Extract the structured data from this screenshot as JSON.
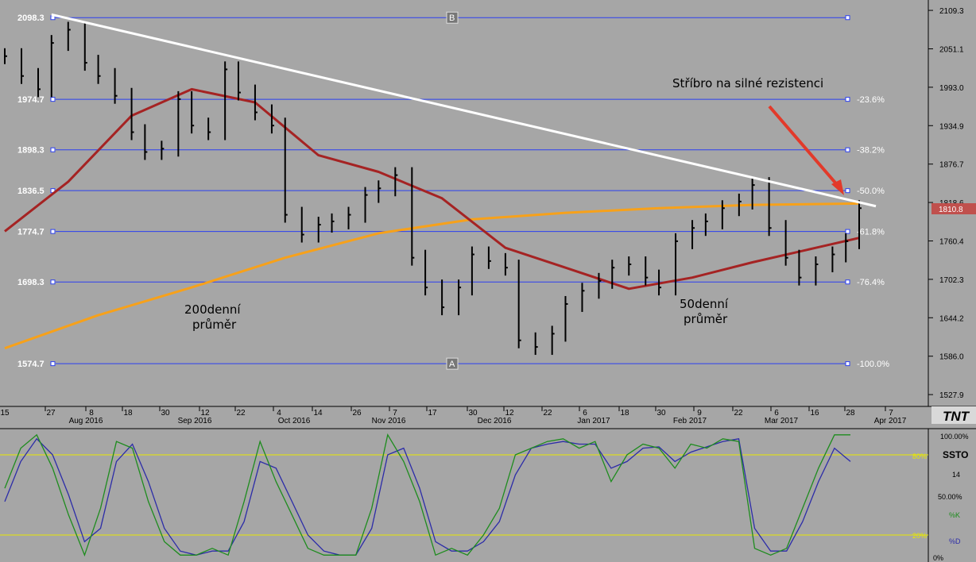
{
  "indicator": {
    "name": "SSTO",
    "period": "14",
    "k_label": "%K",
    "d_label": "%D",
    "top_label": "100.00%",
    "mid_label": "50.00%",
    "bottom_label": "0%",
    "overbought": "80%",
    "oversold": "20%"
  },
  "price_axis": {
    "ticks": [
      "2109.3",
      "2051.1",
      "1993.0",
      "1934.9",
      "1876.7",
      "1818.6",
      "1760.4",
      "1702.3",
      "1644.2",
      "1586.0",
      "1527.9"
    ],
    "ylim": [
      1510,
      2125
    ]
  },
  "fib": {
    "levels": [
      {
        "price": 2098.3,
        "left_label": "2098.3",
        "right_label": ""
      },
      {
        "price": 1974.7,
        "left_label": "1974.7",
        "right_label": "-23.6%"
      },
      {
        "price": 1898.3,
        "left_label": "1898.3",
        "right_label": "-38.2%"
      },
      {
        "price": 1836.5,
        "left_label": "1836.5",
        "right_label": "-50.0%"
      },
      {
        "price": 1774.7,
        "left_label": "1774.7",
        "right_label": "-61.8%"
      },
      {
        "price": 1698.3,
        "left_label": "1698.3",
        "right_label": "-76.4%"
      },
      {
        "price": 1574.7,
        "left_label": "1574.7",
        "right_label": "-100.0%"
      }
    ],
    "point_a": "A",
    "point_b": "B"
  },
  "current_price": "1810.8",
  "annotations": {
    "resistance": "Stříbro na silné rezistenci",
    "ma200_line1": "200denní",
    "ma200_line2": "průměr",
    "ma50_line1": "50denní",
    "ma50_line2": "průměr"
  },
  "logo": "TNT",
  "x_axis": {
    "days": [
      "15",
      "27",
      "8",
      "18",
      "30",
      "12",
      "22",
      "4",
      "14",
      "26",
      "7",
      "17",
      "30",
      "12",
      "22",
      "6",
      "18",
      "30",
      "9",
      "22",
      "6",
      "16",
      "28",
      "7"
    ],
    "months": [
      "Aug 2016",
      "Sep 2016",
      "Oct 2016",
      "Nov 2016",
      "Dec 2016",
      "Jan 2017",
      "Feb 2017",
      "Mar 2017",
      "Apr 2017"
    ]
  },
  "colors": {
    "background": "#a6a6a6",
    "fib_line": "#2b3ff0",
    "ma50": "#a52323",
    "ma200": "#f7a11a",
    "trendline": "#ffffff",
    "arrow": "#e23a2a",
    "stoch_k": "#1e8c1e",
    "stoch_d": "#2c2ca8",
    "stoch_band": "#e8e800",
    "price_badge": "#c0504d"
  },
  "chart_data": [
    {
      "type": "line",
      "title": "",
      "xlabel": "",
      "ylabel": "",
      "x_range": [
        "2016-07-15",
        "2017-04-07"
      ],
      "ylim": [
        1510,
        2125
      ],
      "series": [
        {
          "name": "",
          "style": "ohlc_bars",
          "x": [
            "2016-07-15",
            "2016-07-20",
            "2016-07-25",
            "2016-07-29",
            "2016-08-03",
            "2016-08-08",
            "2016-08-12",
            "2016-08-17",
            "2016-08-22",
            "2016-08-26",
            "2016-08-31",
            "2016-09-05",
            "2016-09-09",
            "2016-09-14",
            "2016-09-19",
            "2016-09-23",
            "2016-09-28",
            "2016-10-03",
            "2016-10-07",
            "2016-10-12",
            "2016-10-17",
            "2016-10-21",
            "2016-10-26",
            "2016-10-31",
            "2016-11-04",
            "2016-11-09",
            "2016-11-14",
            "2016-11-18",
            "2016-11-23",
            "2016-11-28",
            "2016-12-02",
            "2016-12-07",
            "2016-12-12",
            "2016-12-16",
            "2016-12-21",
            "2016-12-26",
            "2016-12-30",
            "2017-01-04",
            "2017-01-09",
            "2017-01-13",
            "2017-01-18",
            "2017-01-23",
            "2017-01-27",
            "2017-02-01",
            "2017-02-06",
            "2017-02-10",
            "2017-02-15",
            "2017-02-20",
            "2017-02-24",
            "2017-03-01",
            "2017-03-06",
            "2017-03-10",
            "2017-03-15",
            "2017-03-20",
            "2017-03-24",
            "2017-03-28"
          ],
          "values": [
            2040,
            2010,
            1990,
            2060,
            2080,
            2030,
            2010,
            1980,
            1925,
            1895,
            1900,
            1975,
            1935,
            1925,
            2020,
            1985,
            1955,
            1935,
            1800,
            1770,
            1785,
            1790,
            1800,
            1830,
            1840,
            1860,
            1735,
            1690,
            1660,
            1690,
            1740,
            1730,
            1720,
            1610,
            1600,
            1620,
            1665,
            1685,
            1700,
            1720,
            1725,
            1705,
            1690,
            1760,
            1780,
            1790,
            1810,
            1820,
            1845,
            1780,
            1735,
            1705,
            1725,
            1740,
            1760,
            1810
          ]
        },
        {
          "name": "",
          "style": "ma50",
          "x": [
            "2016-07-15",
            "2016-08-03",
            "2016-08-22",
            "2016-09-09",
            "2016-09-28",
            "2016-10-17",
            "2016-11-04",
            "2016-11-23",
            "2016-12-12",
            "2016-12-30",
            "2017-01-18",
            "2017-02-06",
            "2017-02-24",
            "2017-03-15",
            "2017-03-28"
          ],
          "values": [
            1775,
            1850,
            1950,
            1990,
            1970,
            1890,
            1865,
            1825,
            1750,
            1720,
            1688,
            1705,
            1728,
            1750,
            1765
          ]
        },
        {
          "name": "",
          "style": "ma200",
          "x": [
            "2016-07-15",
            "2016-08-12",
            "2016-09-09",
            "2016-10-07",
            "2016-11-04",
            "2016-12-02",
            "2016-12-30",
            "2017-01-27",
            "2017-02-24",
            "2017-03-28"
          ],
          "values": [
            1598,
            1648,
            1690,
            1735,
            1772,
            1793,
            1803,
            1810,
            1815,
            1817
          ]
        },
        {
          "name": "",
          "style": "trendline",
          "x": [
            "2016-07-29",
            "2017-04-02"
          ],
          "values": [
            2103,
            1813
          ]
        }
      ]
    },
    {
      "type": "line",
      "title": "",
      "xlabel": "",
      "ylabel": "",
      "x_range": [
        "2016-07-15",
        "2017-04-07"
      ],
      "ylim": [
        0,
        100
      ],
      "series": [
        {
          "name": "%K",
          "x_step_days": 5,
          "values": [
            55,
            85,
            95,
            70,
            35,
            5,
            40,
            90,
            85,
            45,
            15,
            5,
            5,
            10,
            5,
            45,
            90,
            60,
            35,
            10,
            5,
            5,
            5,
            40,
            95,
            75,
            45,
            5,
            10,
            5,
            20,
            40,
            80,
            85,
            90,
            92,
            85,
            90,
            60,
            80,
            88,
            85,
            70,
            88,
            85,
            92,
            90,
            10,
            5,
            10,
            40,
            70,
            95,
            95
          ]
        },
        {
          "name": "%D",
          "x_step_days": 5,
          "values": [
            45,
            75,
            92,
            80,
            50,
            15,
            25,
            75,
            88,
            60,
            25,
            8,
            5,
            8,
            8,
            30,
            75,
            70,
            45,
            20,
            8,
            5,
            5,
            25,
            80,
            85,
            55,
            15,
            8,
            8,
            15,
            30,
            65,
            85,
            88,
            90,
            88,
            88,
            70,
            75,
            85,
            86,
            75,
            82,
            86,
            90,
            92,
            25,
            8,
            8,
            30,
            60,
            85,
            75
          ]
        }
      ]
    }
  ]
}
